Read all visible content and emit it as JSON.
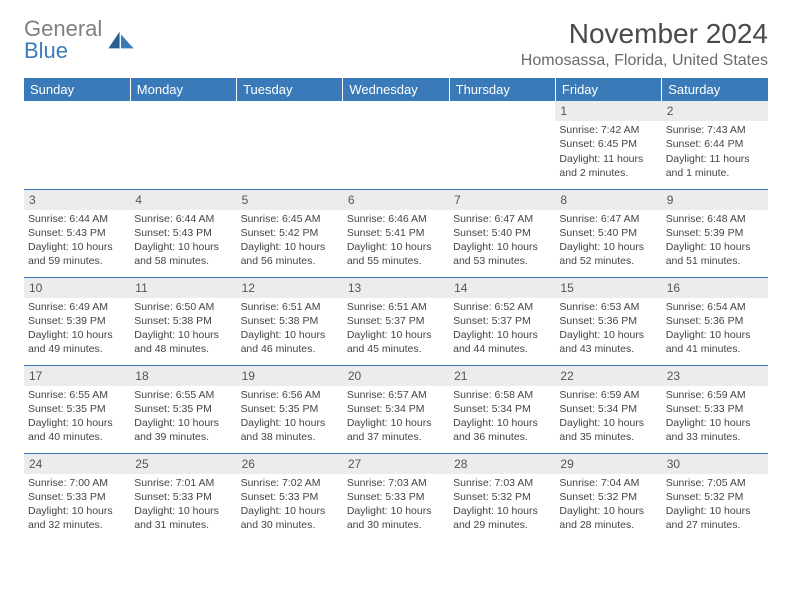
{
  "logo": {
    "text_gray": "General",
    "text_blue": "Blue"
  },
  "title": "November 2024",
  "location": "Homosassa, Florida, United States",
  "colors": {
    "header_bg": "#3a7ab8",
    "daynum_bg": "#ececec",
    "rule": "#3a7ab8",
    "text": "#444444"
  },
  "day_headers": [
    "Sunday",
    "Monday",
    "Tuesday",
    "Wednesday",
    "Thursday",
    "Friday",
    "Saturday"
  ],
  "weeks": [
    [
      null,
      null,
      null,
      null,
      null,
      {
        "n": "1",
        "sr": "7:42 AM",
        "ss": "6:45 PM",
        "dl": "11 hours and 2 minutes."
      },
      {
        "n": "2",
        "sr": "7:43 AM",
        "ss": "6:44 PM",
        "dl": "11 hours and 1 minute."
      }
    ],
    [
      {
        "n": "3",
        "sr": "6:44 AM",
        "ss": "5:43 PM",
        "dl": "10 hours and 59 minutes."
      },
      {
        "n": "4",
        "sr": "6:44 AM",
        "ss": "5:43 PM",
        "dl": "10 hours and 58 minutes."
      },
      {
        "n": "5",
        "sr": "6:45 AM",
        "ss": "5:42 PM",
        "dl": "10 hours and 56 minutes."
      },
      {
        "n": "6",
        "sr": "6:46 AM",
        "ss": "5:41 PM",
        "dl": "10 hours and 55 minutes."
      },
      {
        "n": "7",
        "sr": "6:47 AM",
        "ss": "5:40 PM",
        "dl": "10 hours and 53 minutes."
      },
      {
        "n": "8",
        "sr": "6:47 AM",
        "ss": "5:40 PM",
        "dl": "10 hours and 52 minutes."
      },
      {
        "n": "9",
        "sr": "6:48 AM",
        "ss": "5:39 PM",
        "dl": "10 hours and 51 minutes."
      }
    ],
    [
      {
        "n": "10",
        "sr": "6:49 AM",
        "ss": "5:39 PM",
        "dl": "10 hours and 49 minutes."
      },
      {
        "n": "11",
        "sr": "6:50 AM",
        "ss": "5:38 PM",
        "dl": "10 hours and 48 minutes."
      },
      {
        "n": "12",
        "sr": "6:51 AM",
        "ss": "5:38 PM",
        "dl": "10 hours and 46 minutes."
      },
      {
        "n": "13",
        "sr": "6:51 AM",
        "ss": "5:37 PM",
        "dl": "10 hours and 45 minutes."
      },
      {
        "n": "14",
        "sr": "6:52 AM",
        "ss": "5:37 PM",
        "dl": "10 hours and 44 minutes."
      },
      {
        "n": "15",
        "sr": "6:53 AM",
        "ss": "5:36 PM",
        "dl": "10 hours and 43 minutes."
      },
      {
        "n": "16",
        "sr": "6:54 AM",
        "ss": "5:36 PM",
        "dl": "10 hours and 41 minutes."
      }
    ],
    [
      {
        "n": "17",
        "sr": "6:55 AM",
        "ss": "5:35 PM",
        "dl": "10 hours and 40 minutes."
      },
      {
        "n": "18",
        "sr": "6:55 AM",
        "ss": "5:35 PM",
        "dl": "10 hours and 39 minutes."
      },
      {
        "n": "19",
        "sr": "6:56 AM",
        "ss": "5:35 PM",
        "dl": "10 hours and 38 minutes."
      },
      {
        "n": "20",
        "sr": "6:57 AM",
        "ss": "5:34 PM",
        "dl": "10 hours and 37 minutes."
      },
      {
        "n": "21",
        "sr": "6:58 AM",
        "ss": "5:34 PM",
        "dl": "10 hours and 36 minutes."
      },
      {
        "n": "22",
        "sr": "6:59 AM",
        "ss": "5:34 PM",
        "dl": "10 hours and 35 minutes."
      },
      {
        "n": "23",
        "sr": "6:59 AM",
        "ss": "5:33 PM",
        "dl": "10 hours and 33 minutes."
      }
    ],
    [
      {
        "n": "24",
        "sr": "7:00 AM",
        "ss": "5:33 PM",
        "dl": "10 hours and 32 minutes."
      },
      {
        "n": "25",
        "sr": "7:01 AM",
        "ss": "5:33 PM",
        "dl": "10 hours and 31 minutes."
      },
      {
        "n": "26",
        "sr": "7:02 AM",
        "ss": "5:33 PM",
        "dl": "10 hours and 30 minutes."
      },
      {
        "n": "27",
        "sr": "7:03 AM",
        "ss": "5:33 PM",
        "dl": "10 hours and 30 minutes."
      },
      {
        "n": "28",
        "sr": "7:03 AM",
        "ss": "5:32 PM",
        "dl": "10 hours and 29 minutes."
      },
      {
        "n": "29",
        "sr": "7:04 AM",
        "ss": "5:32 PM",
        "dl": "10 hours and 28 minutes."
      },
      {
        "n": "30",
        "sr": "7:05 AM",
        "ss": "5:32 PM",
        "dl": "10 hours and 27 minutes."
      }
    ]
  ],
  "labels": {
    "sunrise": "Sunrise:",
    "sunset": "Sunset:",
    "daylight": "Daylight:"
  }
}
